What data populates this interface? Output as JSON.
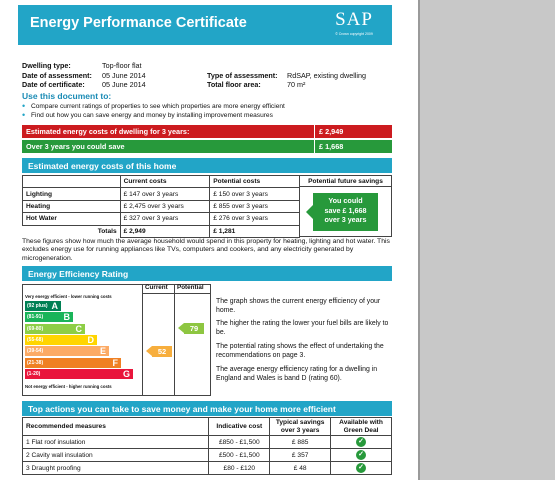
{
  "header": {
    "title": "Energy Performance Certificate",
    "logo_text": "SAP",
    "logo_copyright": "© Crown copyright 2009"
  },
  "property": {
    "dwelling_type_label": "Dwelling type:",
    "dwelling_type": "Top-floor flat",
    "date_assessment_label": "Date of assessment:",
    "date_assessment": "05  June  2014",
    "date_certificate_label": "Date of certificate:",
    "date_certificate": "05  June  2014",
    "type_assessment_label": "Type of assessment:",
    "type_assessment": "RdSAP, existing dwelling",
    "floor_area_label": "Total floor area:",
    "floor_area": "70 m²"
  },
  "use_doc": {
    "title": "Use this document to:",
    "bullets": [
      "Compare current ratings of properties to see which properties are more energy efficient",
      "Find out how you can save energy and money by installing improvement measures"
    ]
  },
  "summary": {
    "estimated_label": "Estimated energy costs of dwelling for 3 years:",
    "estimated_value": "£ 2,949",
    "save_label": "Over 3 years you could save",
    "save_value": "£ 1,668",
    "colors": {
      "red": "#cc1b1f",
      "green": "#27993b",
      "accent": "#22a5c7"
    }
  },
  "costs": {
    "title": "Estimated energy costs of this home",
    "headers": [
      "",
      "Current costs",
      "Potential costs",
      "Potential future savings"
    ],
    "rows": [
      {
        "label": "Lighting",
        "current": "£ 147 over 3 years",
        "potential": "£ 150 over 3 years"
      },
      {
        "label": "Heating",
        "current": "£ 2,475 over 3 years",
        "potential": "£ 855 over 3 years"
      },
      {
        "label": "Hot Water",
        "current": "£ 327 over 3 years",
        "potential": "£ 276 over 3 years"
      }
    ],
    "totals_label": "Totals",
    "total_current": "£ 2,949",
    "total_potential": "£ 1,281",
    "save_box": {
      "line1": "You could",
      "line2": "save £ 1,668",
      "line3": "over 3 years"
    },
    "note": "These figures show how much the average household would spend in this property for heating, lighting and hot water. This excludes energy use for running appliances like TVs, computers and cookers, and any electricity generated by microgeneration."
  },
  "efficiency": {
    "title": "Energy Efficiency Rating",
    "col_current": "Current",
    "col_potential": "Potential",
    "top_note": "Very energy efficient - lower running costs",
    "bottom_note": "Not energy efficient - higher running costs",
    "bands": [
      {
        "range": "(92 plus)",
        "letter": "A",
        "color": "#008054"
      },
      {
        "range": "(81-91)",
        "letter": "B",
        "color": "#19b459"
      },
      {
        "range": "(69-80)",
        "letter": "C",
        "color": "#8dce46"
      },
      {
        "range": "(55-68)",
        "letter": "D",
        "color": "#ffd500"
      },
      {
        "range": "(39-54)",
        "letter": "E",
        "color": "#fcaa65"
      },
      {
        "range": "(21-38)",
        "letter": "F",
        "color": "#ef8023"
      },
      {
        "range": "(1-20)",
        "letter": "G",
        "color": "#e9153b"
      }
    ],
    "current_rating": 52,
    "current_band": "E",
    "potential_rating": 79,
    "potential_band": "C",
    "text": [
      "The graph shows the current energy efficiency of your home.",
      "The higher the rating the lower your fuel bills are likely to be.",
      "The potential rating shows the effect of undertaking the recommendations on page 3.",
      "The average energy efficiency rating for a dwelling in England and Wales is band D (rating 60)."
    ]
  },
  "actions": {
    "title": "Top actions you can take to save money and make your home more efficient",
    "headers": [
      "Recommended measures",
      "Indicative cost",
      "Typical savings over 3 years",
      "Available with Green Deal"
    ],
    "rows": [
      {
        "measure": "1  Flat roof insulation",
        "cost": "£850 - £1,500",
        "saving": "£ 885",
        "green_deal": "tick-icon"
      },
      {
        "measure": "2  Cavity wall insulation",
        "cost": "£500 - £1,500",
        "saving": "£ 357",
        "green_deal": "tick-icon"
      },
      {
        "measure": "3  Draught proofing",
        "cost": "£80 - £120",
        "saving": "£ 48",
        "green_deal": "tick-icon"
      }
    ]
  }
}
